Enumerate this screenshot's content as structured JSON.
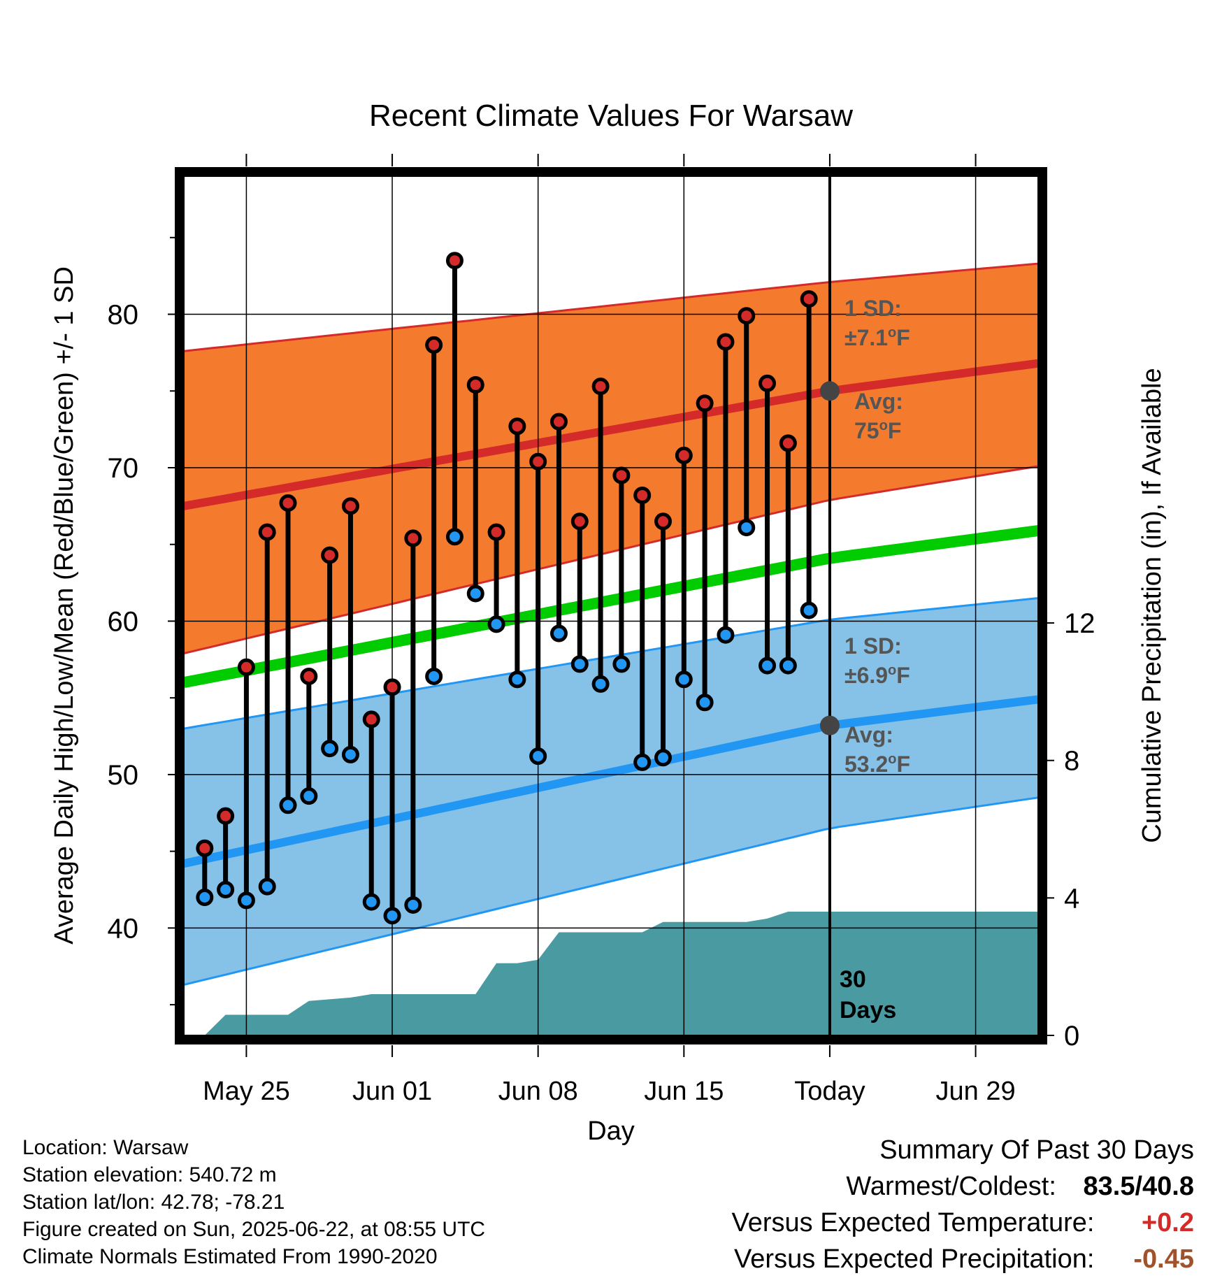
{
  "chart_data": {
    "type": "line",
    "title": "Recent Climate Values For Warsaw",
    "xlabel": "Day",
    "ylabel": "Average Daily High/Low/Mean (Red/Blue/Green) +/- 1 SD",
    "y2label": "Cumulative Precipitation (in), If Available",
    "ylim": [
      33,
      89
    ],
    "y2lim": [
      0,
      25
    ],
    "yticks": [
      "40",
      "50",
      "60",
      "70",
      "80"
    ],
    "y2ticks": [
      "0",
      "4",
      "8",
      "12"
    ],
    "xticks": [
      "May 25",
      "Jun 01",
      "Jun 08",
      "Jun 15",
      "Today",
      "Jun 29"
    ],
    "x_range": [
      "2025-05-22",
      "2025-07-02"
    ],
    "grid": true,
    "today": "2025-06-22",
    "colors": {
      "high": "#d42a2a",
      "low": "#2196f3",
      "mean": "#00cc00",
      "high_band": "#f47a2e",
      "low_band": "#86c1e8",
      "precip": "#4a9aa2",
      "sd_label": "#555555"
    },
    "normal_high": {
      "name": "Normal High",
      "x": [
        "2025-05-22",
        "2025-06-22",
        "2025-07-02"
      ],
      "values": [
        67.5,
        75,
        76.8
      ]
    },
    "normal_high_plus_sd": [
      77.6,
      82.1,
      83.3
    ],
    "normal_high_minus_sd": [
      57.9,
      67.9,
      70.1
    ],
    "normal_low": {
      "name": "Normal Low",
      "x": [
        "2025-05-22",
        "2025-06-22",
        "2025-07-02"
      ],
      "values": [
        44.2,
        53.2,
        54.9
      ]
    },
    "normal_low_plus_sd": [
      53,
      60.1,
      61.5
    ],
    "normal_low_minus_sd": [
      36.3,
      46.5,
      48.5
    ],
    "normal_mean": {
      "name": "Normal Mean",
      "x": [
        "2025-05-22",
        "2025-06-22",
        "2025-07-02"
      ],
      "values": [
        56,
        64.1,
        65.9
      ]
    },
    "daily": {
      "dates": [
        "2025-05-23",
        "2025-05-24",
        "2025-05-25",
        "2025-05-26",
        "2025-05-27",
        "2025-05-28",
        "2025-05-29",
        "2025-05-30",
        "2025-05-31",
        "2025-06-01",
        "2025-06-02",
        "2025-06-03",
        "2025-06-04",
        "2025-06-05",
        "2025-06-06",
        "2025-06-07",
        "2025-06-08",
        "2025-06-09",
        "2025-06-10",
        "2025-06-11",
        "2025-06-12",
        "2025-06-13",
        "2025-06-14",
        "2025-06-15",
        "2025-06-16",
        "2025-06-17",
        "2025-06-18",
        "2025-06-19",
        "2025-06-20",
        "2025-06-21"
      ],
      "high": [
        45.2,
        47.3,
        57,
        65.8,
        67.7,
        56.4,
        64.3,
        67.5,
        53.6,
        55.7,
        65.4,
        78,
        83.5,
        75.4,
        65.8,
        72.7,
        70.4,
        73,
        66.5,
        75.3,
        69.5,
        68.2,
        66.5,
        70.8,
        74.2,
        78.2,
        79.9,
        75.5,
        71.6,
        81
      ],
      "low": [
        42,
        42.5,
        41.8,
        42.7,
        48,
        48.6,
        51.7,
        51.3,
        41.7,
        40.8,
        41.5,
        56.4,
        65.5,
        61.8,
        59.8,
        56.2,
        51.2,
        59.2,
        57.2,
        55.9,
        57.2,
        50.8,
        51.1,
        56.2,
        54.7,
        59.1,
        66.1,
        57.1,
        57.1,
        60.7
      ]
    },
    "precip": {
      "dates": [
        "2025-05-22",
        "2025-05-23",
        "2025-05-24",
        "2025-05-27",
        "2025-05-28",
        "2025-05-30",
        "2025-05-31",
        "2025-06-05",
        "2025-06-06",
        "2025-06-07",
        "2025-06-08",
        "2025-06-09",
        "2025-06-13",
        "2025-06-14",
        "2025-06-18",
        "2025-06-19",
        "2025-06-20",
        "2025-07-02"
      ],
      "values": [
        0,
        0,
        0.6,
        0.6,
        1,
        1.1,
        1.2,
        1.2,
        2.1,
        2.1,
        2.2,
        3,
        3,
        3.3,
        3.3,
        3.4,
        3.6,
        3.6
      ]
    },
    "annotations": {
      "high_sd": {
        "line1": "1 SD:",
        "pm": "±",
        "value": "7.1",
        "deg": "o",
        "unit": "F"
      },
      "high_avg": {
        "line1": "Avg:",
        "value": "75",
        "deg": "o",
        "unit": "F"
      },
      "low_sd": {
        "line1": "1 SD:",
        "pm": "±",
        "value": "6.9",
        "deg": "o",
        "unit": "F"
      },
      "low_avg": {
        "line1": "Avg:",
        "value": "53.2",
        "deg": "o",
        "unit": "F"
      },
      "days_line1": "30",
      "days_line2": "Days"
    }
  },
  "info": {
    "location": "Location: Warsaw",
    "elevation": "Station elevation: 540.72 m",
    "latlon": "Station lat/lon: 42.78; -78.21",
    "created": "Figure created on Sun, 2025-06-22, at 08:55 UTC",
    "normals": "Climate Normals Estimated From 1990-2020"
  },
  "summary": {
    "title": "Summary Of Past 30 Days",
    "warm_cold_label": "Warmest/Coldest:",
    "warmest": "83.5",
    "coldest": "40.8",
    "temp_label": "Versus Expected Temperature:",
    "temp_value": "+0.2",
    "temp_color": "#d42a2a",
    "precip_label": "Versus Expected Precipitation:",
    "precip_value": "-0.45",
    "precip_color": "#a0522d"
  }
}
